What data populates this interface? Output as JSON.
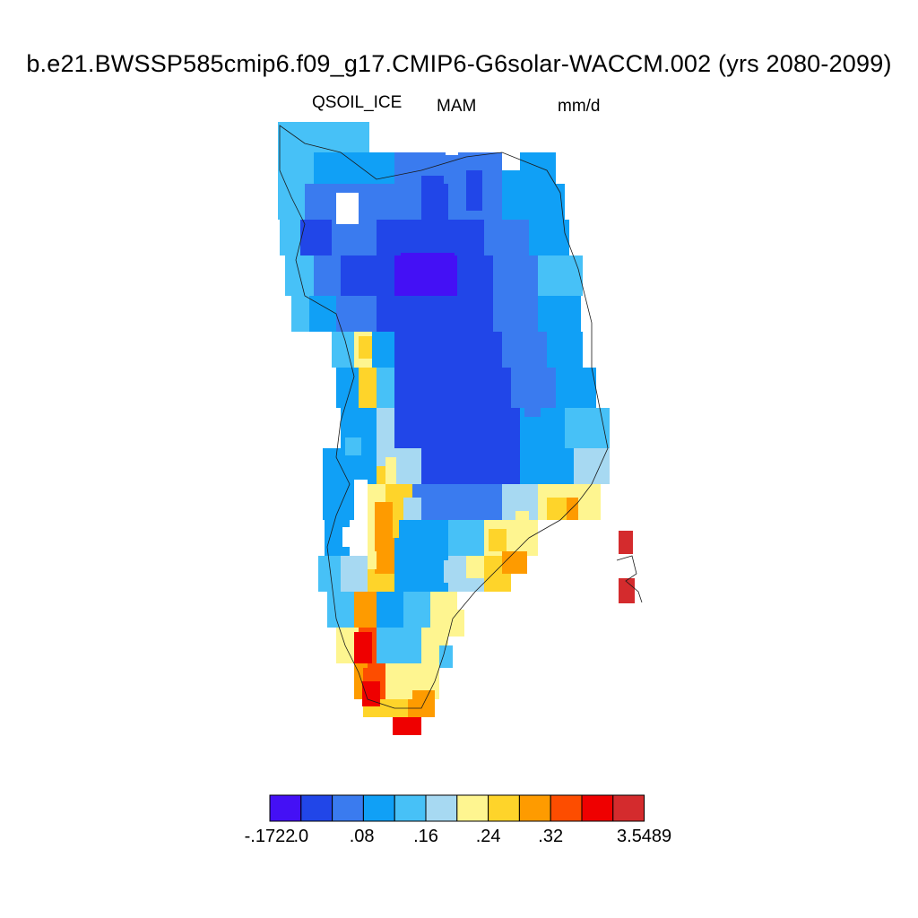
{
  "title": "b.e21.BWSSP585cmip6.f09_g17.CMIP6-G6solar-WACCM.002 (yrs 2080-2099)",
  "variable": "QSOIL_ICE",
  "season": "MAM",
  "units": "mm/d",
  "colorbar": {
    "colors": [
      "#4410f5",
      "#2146e8",
      "#3a7bef",
      "#10a0f6",
      "#47c1f7",
      "#a7d9f2",
      "#fef590",
      "#fed42a",
      "#fe9b00",
      "#fd4d00",
      "#ef0000",
      "#d42b2d"
    ],
    "labels": [
      {
        "text": "-.1722",
        "boundary": 0
      },
      {
        "text": ".0",
        "boundary": 1
      },
      {
        "text": ".08",
        "boundary": 2.95
      },
      {
        "text": ".16",
        "boundary": 5
      },
      {
        "text": ".24",
        "boundary": 7
      },
      {
        "text": ".32",
        "boundary": 9
      },
      {
        "text": "3.5489",
        "boundary": 12
      }
    ]
  }
}
